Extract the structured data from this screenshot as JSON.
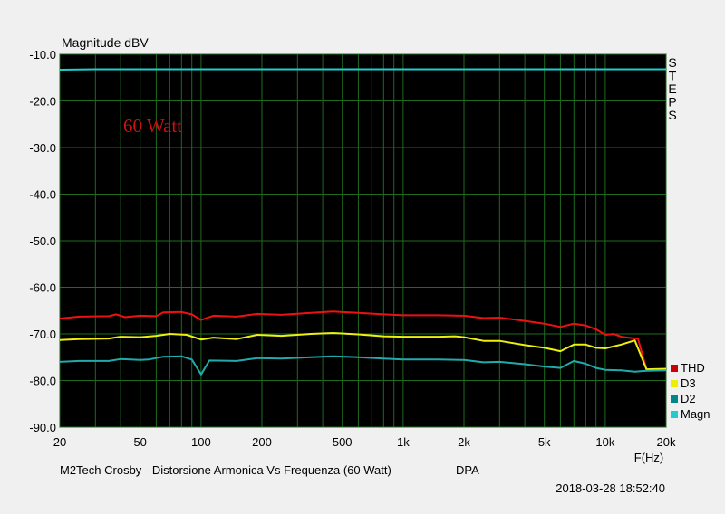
{
  "chart_data": {
    "type": "line",
    "ylabel": "Magnitude dBV",
    "xlabel": "F(Hz)",
    "annotation": "60 Watt",
    "footer_title": "M2Tech Crosby - Distorsione Armonica Vs Frequenza (60 Watt)",
    "footer_source": "DPA",
    "timestamp": "2018-03-28 18:52:40",
    "side_label": "STEPS",
    "x_scale": "log",
    "xlim": [
      20,
      20000
    ],
    "ylim": [
      -90,
      -10
    ],
    "grid": true,
    "background": "#000000",
    "grid_color": "#1f6b1f",
    "y_ticks": [
      {
        "value": -10,
        "label": "-10.0"
      },
      {
        "value": -20,
        "label": "-20.0"
      },
      {
        "value": -30,
        "label": "-30.0"
      },
      {
        "value": -40,
        "label": "-40.0"
      },
      {
        "value": -50,
        "label": "-50.0"
      },
      {
        "value": -60,
        "label": "-60.0"
      },
      {
        "value": -70,
        "label": "-70.0"
      },
      {
        "value": -80,
        "label": "-80.0"
      },
      {
        "value": -90,
        "label": "-90.0"
      }
    ],
    "x_ticks": [
      {
        "value": 20,
        "label": "20"
      },
      {
        "value": 50,
        "label": "50"
      },
      {
        "value": 100,
        "label": "100"
      },
      {
        "value": 200,
        "label": "200"
      },
      {
        "value": 500,
        "label": "500"
      },
      {
        "value": 1000,
        "label": "1k"
      },
      {
        "value": 2000,
        "label": "2k"
      },
      {
        "value": 5000,
        "label": "5k"
      },
      {
        "value": 10000,
        "label": "10k"
      },
      {
        "value": 20000,
        "label": "20k"
      }
    ],
    "x_grid": [
      20,
      30,
      40,
      50,
      60,
      70,
      80,
      90,
      100,
      200,
      300,
      400,
      500,
      600,
      700,
      800,
      900,
      1000,
      2000,
      3000,
      4000,
      5000,
      6000,
      7000,
      8000,
      9000,
      10000,
      20000
    ],
    "series": [
      {
        "name": "Magn",
        "color": "#22cccc",
        "points": [
          [
            20,
            -13.3
          ],
          [
            30,
            -13.2
          ],
          [
            100,
            -13.2
          ],
          [
            1000,
            -13.2
          ],
          [
            10000,
            -13.2
          ],
          [
            20000,
            -13.2
          ]
        ]
      },
      {
        "name": "THD",
        "color": "#ee1111",
        "points": [
          [
            20,
            -66.7
          ],
          [
            25,
            -66.3
          ],
          [
            35,
            -66.2
          ],
          [
            38,
            -65.8
          ],
          [
            42,
            -66.4
          ],
          [
            50,
            -66.1
          ],
          [
            60,
            -66.2
          ],
          [
            65,
            -65.4
          ],
          [
            80,
            -65.3
          ],
          [
            90,
            -65.8
          ],
          [
            100,
            -67.0
          ],
          [
            115,
            -66.1
          ],
          [
            150,
            -66.3
          ],
          [
            190,
            -65.7
          ],
          [
            250,
            -65.9
          ],
          [
            350,
            -65.5
          ],
          [
            450,
            -65.2
          ],
          [
            600,
            -65.5
          ],
          [
            800,
            -65.8
          ],
          [
            1000,
            -66.0
          ],
          [
            1500,
            -66.0
          ],
          [
            2000,
            -66.1
          ],
          [
            2500,
            -66.6
          ],
          [
            3000,
            -66.5
          ],
          [
            4000,
            -67.2
          ],
          [
            5000,
            -67.8
          ],
          [
            6000,
            -68.5
          ],
          [
            7000,
            -67.8
          ],
          [
            8000,
            -68.2
          ],
          [
            9000,
            -69.0
          ],
          [
            10000,
            -70.2
          ],
          [
            11000,
            -70.0
          ],
          [
            12000,
            -70.6
          ],
          [
            13500,
            -70.9
          ],
          [
            14500,
            -71.0
          ],
          [
            16000,
            -77.6
          ],
          [
            20000,
            -77.5
          ]
        ]
      },
      {
        "name": "D3",
        "color": "#eeee11",
        "points": [
          [
            20,
            -71.3
          ],
          [
            25,
            -71.1
          ],
          [
            35,
            -71.0
          ],
          [
            40,
            -70.6
          ],
          [
            50,
            -70.7
          ],
          [
            60,
            -70.4
          ],
          [
            70,
            -70.0
          ],
          [
            85,
            -70.2
          ],
          [
            100,
            -71.2
          ],
          [
            115,
            -70.8
          ],
          [
            150,
            -71.1
          ],
          [
            190,
            -70.2
          ],
          [
            250,
            -70.4
          ],
          [
            350,
            -70.0
          ],
          [
            450,
            -69.8
          ],
          [
            600,
            -70.1
          ],
          [
            800,
            -70.5
          ],
          [
            1000,
            -70.6
          ],
          [
            1500,
            -70.6
          ],
          [
            1800,
            -70.5
          ],
          [
            2000,
            -70.7
          ],
          [
            2500,
            -71.5
          ],
          [
            3000,
            -71.5
          ],
          [
            4000,
            -72.4
          ],
          [
            5000,
            -73.0
          ],
          [
            6000,
            -73.7
          ],
          [
            7000,
            -72.3
          ],
          [
            8000,
            -72.3
          ],
          [
            9000,
            -73.0
          ],
          [
            10000,
            -73.1
          ],
          [
            12000,
            -72.3
          ],
          [
            14000,
            -71.4
          ],
          [
            16000,
            -77.6
          ],
          [
            20000,
            -77.5
          ]
        ]
      },
      {
        "name": "D2",
        "color": "#22aaaa",
        "points": [
          [
            20,
            -76.0
          ],
          [
            25,
            -75.8
          ],
          [
            35,
            -75.8
          ],
          [
            40,
            -75.4
          ],
          [
            50,
            -75.6
          ],
          [
            55,
            -75.5
          ],
          [
            65,
            -74.9
          ],
          [
            80,
            -74.8
          ],
          [
            90,
            -75.5
          ],
          [
            100,
            -78.7
          ],
          [
            110,
            -75.7
          ],
          [
            150,
            -75.8
          ],
          [
            190,
            -75.2
          ],
          [
            250,
            -75.3
          ],
          [
            350,
            -75.0
          ],
          [
            450,
            -74.8
          ],
          [
            600,
            -75.0
          ],
          [
            800,
            -75.3
          ],
          [
            1000,
            -75.5
          ],
          [
            1500,
            -75.5
          ],
          [
            2000,
            -75.6
          ],
          [
            2500,
            -76.1
          ],
          [
            3000,
            -76.0
          ],
          [
            4000,
            -76.5
          ],
          [
            5000,
            -77.0
          ],
          [
            6000,
            -77.3
          ],
          [
            7000,
            -75.8
          ],
          [
            8000,
            -76.4
          ],
          [
            9000,
            -77.3
          ],
          [
            10000,
            -77.7
          ],
          [
            12000,
            -77.8
          ],
          [
            14000,
            -78.1
          ],
          [
            16000,
            -77.9
          ],
          [
            20000,
            -77.8
          ]
        ]
      }
    ],
    "legend": [
      {
        "name": "THD",
        "color": "#cc0000"
      },
      {
        "name": "D3",
        "color": "#eeee00"
      },
      {
        "name": "D2",
        "color": "#008888"
      },
      {
        "name": "Magn",
        "color": "#22cccc"
      }
    ]
  }
}
